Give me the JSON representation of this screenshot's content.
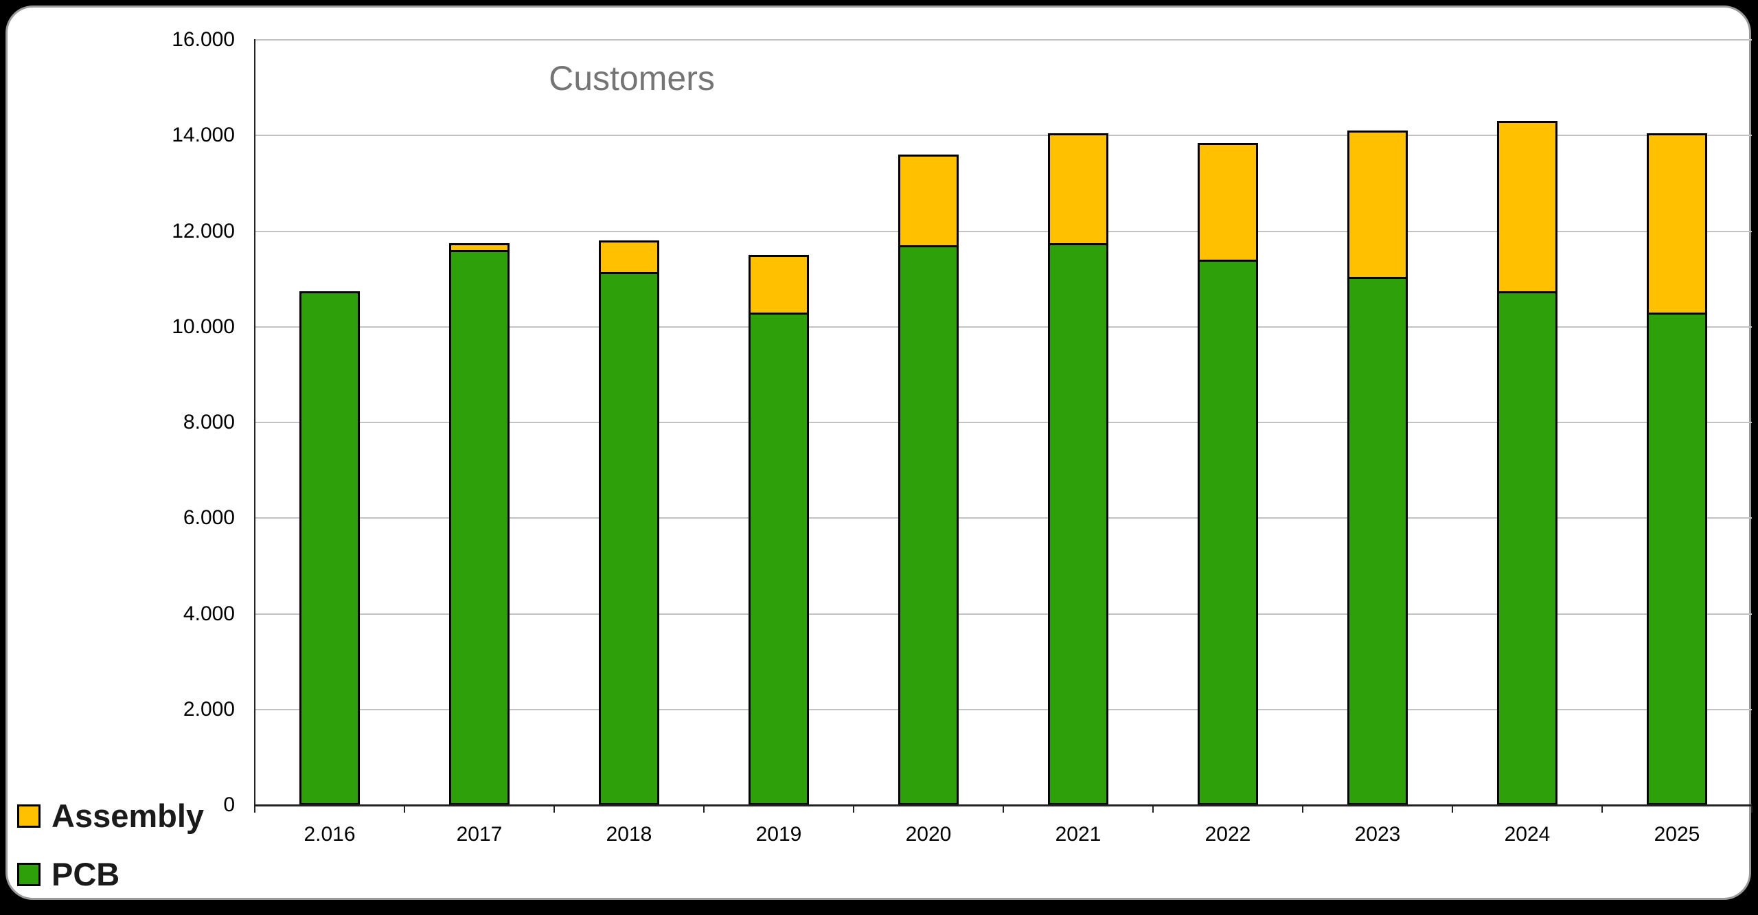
{
  "title": "Customers",
  "legend": [
    {
      "label": "Assembly",
      "color": "#FFC000"
    },
    {
      "label": "PCB",
      "color": "#2EA10A"
    }
  ],
  "chart_data": {
    "type": "bar",
    "stacked": true,
    "title": "Customers",
    "categories": [
      "2.016",
      "2017",
      "2018",
      "2019",
      "2020",
      "2021",
      "2022",
      "2023",
      "2024",
      "2025"
    ],
    "series": [
      {
        "name": "PCB",
        "color": "#2EA10A",
        "values": [
          10750,
          11600,
          11150,
          10300,
          11700,
          11750,
          11400,
          11050,
          10750,
          10300
        ]
      },
      {
        "name": "Assembly",
        "color": "#FFC000",
        "values": [
          0,
          150,
          650,
          1200,
          1900,
          2300,
          2450,
          3050,
          3550,
          3750
        ]
      }
    ],
    "totals": [
      10750,
      11750,
      11800,
      11500,
      13600,
      14050,
      13850,
      14100,
      14300,
      14050
    ],
    "xlabel": "",
    "ylabel": "",
    "ylim": [
      0,
      16000
    ],
    "y_tick_step": 2000,
    "y_tick_labels": [
      "0",
      "2.000",
      "4.000",
      "6.000",
      "8.000",
      "10.000",
      "12.000",
      "14.000",
      "16.000"
    ],
    "grid": true,
    "legend_position": "bottom-left",
    "colors": {
      "grid": "#c3c3c3",
      "axis": "#222222",
      "bar_border": "#000000",
      "title": "#757575"
    }
  }
}
